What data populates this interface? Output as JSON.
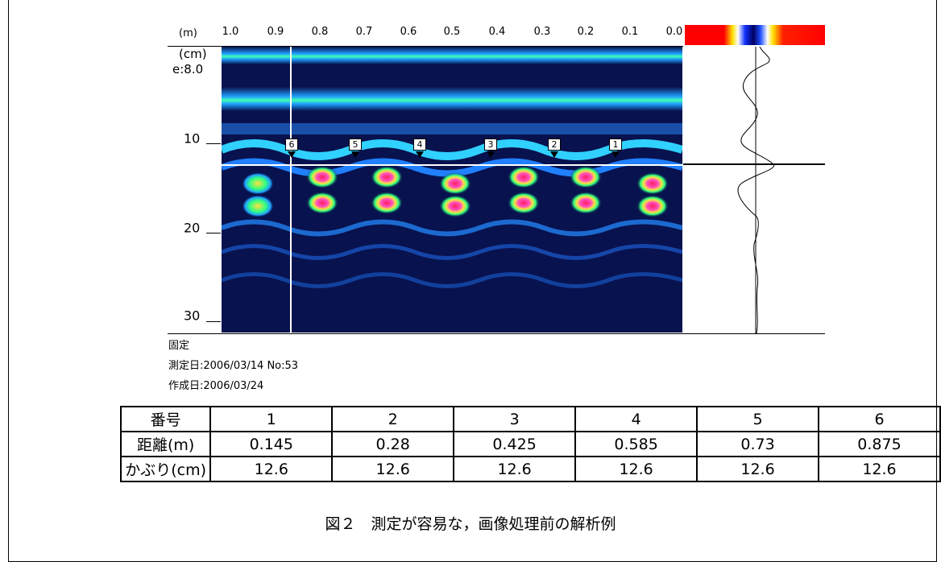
{
  "figure": {
    "x_axis": {
      "unit": "(m)",
      "ticks": [
        "1.0",
        "0.9",
        "0.8",
        "0.7",
        "0.6",
        "0.5",
        "0.4",
        "0.3",
        "0.2",
        "0.1",
        "0.0"
      ]
    },
    "y_axis": {
      "unit": "(cm)",
      "epsilon_label": "e:8.0",
      "ticks": [
        "10",
        "20",
        "30"
      ]
    },
    "markers": [
      "6",
      "5",
      "4",
      "3",
      "2",
      "1"
    ],
    "meta": {
      "mode": "固定",
      "measured": "測定日:2006/03/14 No:53",
      "created": "作成日:2006/03/24"
    },
    "colors": {
      "scan_background": "#08124e",
      "hot": "#ff2060",
      "warm": "#ffe040",
      "mid": "#30ff80",
      "cool": "#20a0ff"
    }
  },
  "table": {
    "header": [
      "番号",
      "1",
      "2",
      "3",
      "4",
      "5",
      "6"
    ],
    "rows": [
      [
        "距離(m)",
        "0.145",
        "0.28",
        "0.425",
        "0.585",
        "0.73",
        "0.875"
      ],
      [
        "かぶり(cm)",
        "12.6",
        "12.6",
        "12.6",
        "12.6",
        "12.6",
        "12.6"
      ]
    ]
  },
  "caption": "図２　測定が容易な，画像処理前の解析例"
}
